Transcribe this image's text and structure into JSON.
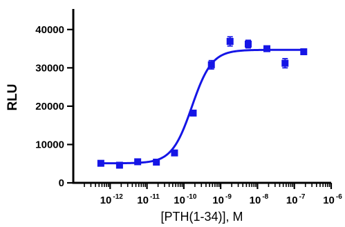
{
  "chart_data": {
    "type": "scatter",
    "title": "",
    "xlabel": "[PTH(1-34)], M",
    "ylabel": "RLU",
    "x_scale": "log",
    "xlim": [
      1e-13,
      1e-06
    ],
    "ylim": [
      0,
      45000
    ],
    "x_tick_labels": [
      {
        "base": "10",
        "exp": "-12"
      },
      {
        "base": "10",
        "exp": "-11"
      },
      {
        "base": "10",
        "exp": "-10"
      },
      {
        "base": "10",
        "exp": "-9"
      },
      {
        "base": "10",
        "exp": "-8"
      },
      {
        "base": "10",
        "exp": "-7"
      },
      {
        "base": "10",
        "exp": "-6"
      }
    ],
    "y_ticks": [
      "0",
      "10000",
      "20000",
      "30000",
      "40000"
    ],
    "grid": false,
    "legend": "none",
    "series": [
      {
        "color": "#1515e6",
        "marker": "square",
        "points": [
          {
            "x": 5.6e-13,
            "y": 5100,
            "err": 200
          },
          {
            "x": 1.8e-12,
            "y": 4600,
            "err": 300
          },
          {
            "x": 5.6e-12,
            "y": 5500,
            "err": 250
          },
          {
            "x": 1.8e-11,
            "y": 5400,
            "err": 250
          },
          {
            "x": 5.6e-11,
            "y": 7800,
            "err": 300
          },
          {
            "x": 1.8e-10,
            "y": 18200,
            "err": 350
          },
          {
            "x": 5.6e-10,
            "y": 30800,
            "err": 1100
          },
          {
            "x": 1.8e-09,
            "y": 36900,
            "err": 1200
          },
          {
            "x": 5.6e-09,
            "y": 36200,
            "err": 1000
          },
          {
            "x": 1.8e-08,
            "y": 35000,
            "err": 600
          },
          {
            "x": 5.6e-08,
            "y": 31200,
            "err": 1200
          },
          {
            "x": 1.8e-07,
            "y": 34200,
            "err": 300
          }
        ],
        "fit": {
          "bottom": 5100,
          "top": 34700,
          "log_ec50": -9.78,
          "hill_slope": 1.6,
          "x_range": [
            5.6e-13,
            1.8e-07
          ]
        }
      }
    ]
  }
}
